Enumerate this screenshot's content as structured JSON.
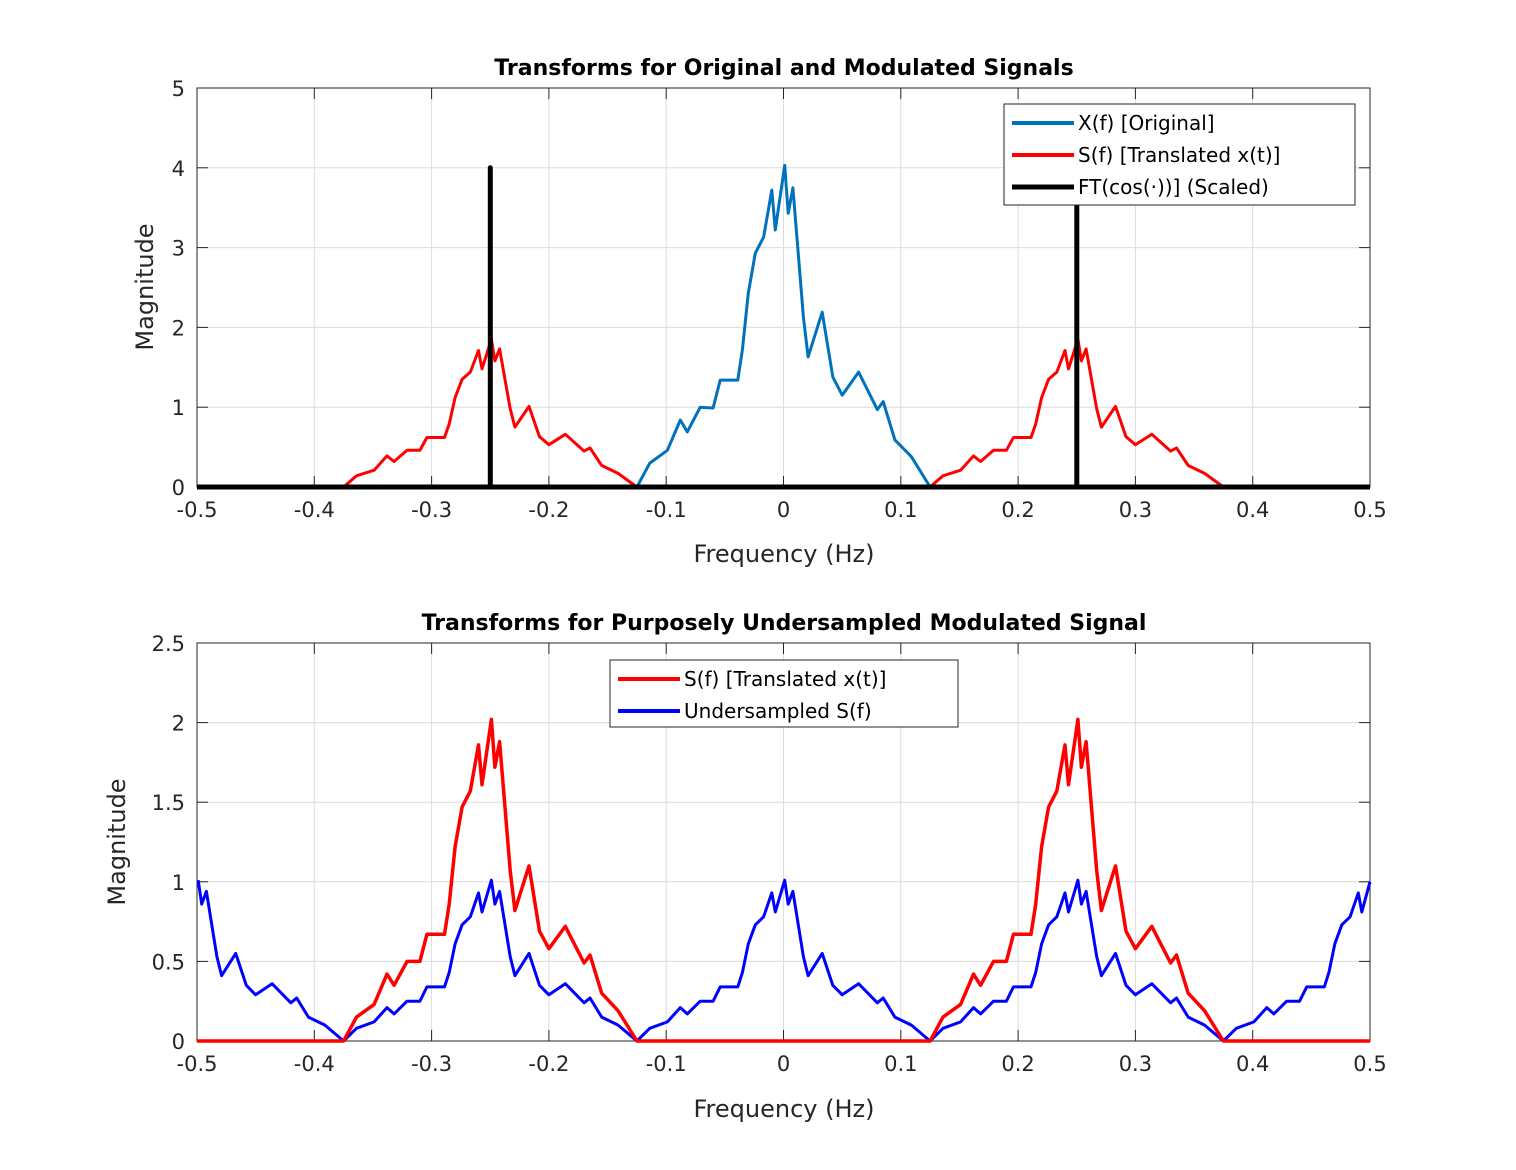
{
  "chart_data": [
    {
      "type": "line",
      "title": "Transforms for Original and Modulated Signals",
      "xlabel": "Frequency (Hz)",
      "ylabel": "Magnitude",
      "xlim": [
        -0.5,
        0.5
      ],
      "ylim": [
        0,
        5
      ],
      "xticks": [
        "-0.5",
        "-0.4",
        "-0.3",
        "-0.2",
        "-0.1",
        "0",
        "0.1",
        "0.2",
        "0.3",
        "0.4",
        "0.5"
      ],
      "yticks": [
        "0",
        "1",
        "2",
        "3",
        "4",
        "5"
      ],
      "grid": true,
      "legend_position": "top-right",
      "series": [
        {
          "name": "X(f) [Original]",
          "color": "#0072BD",
          "x": [
            -0.125,
            -0.114,
            -0.099,
            -0.088,
            -0.082,
            -0.071,
            -0.06,
            -0.054,
            -0.039,
            -0.035,
            -0.03,
            -0.024,
            -0.017,
            -0.01,
            -0.007,
            0.001,
            0.004,
            0.008,
            0.017,
            0.021,
            0.033,
            0.042,
            0.05,
            0.064,
            0.08,
            0.085,
            0.095,
            0.109,
            0.125
          ],
          "y": [
            0,
            0.3,
            0.46,
            0.84,
            0.69,
            1.0,
            0.99,
            1.34,
            1.34,
            1.72,
            2.43,
            2.93,
            3.13,
            3.72,
            3.22,
            4.03,
            3.43,
            3.75,
            2.13,
            1.63,
            2.19,
            1.38,
            1.15,
            1.44,
            0.97,
            1.07,
            0.59,
            0.38,
            0
          ]
        },
        {
          "name": "S(f) [Translated x(t)]",
          "color": "#FF0000",
          "x": [
            -0.5,
            -0.375,
            -0.364,
            -0.349,
            -0.338,
            -0.332,
            -0.321,
            -0.31,
            -0.304,
            -0.289,
            -0.285,
            -0.28,
            -0.274,
            -0.267,
            -0.26,
            -0.257,
            -0.249,
            -0.246,
            -0.242,
            -0.233,
            -0.229,
            -0.217,
            -0.208,
            -0.2,
            -0.186,
            -0.17,
            -0.165,
            -0.155,
            -0.141,
            -0.125,
            0.125,
            0.136,
            0.151,
            0.162,
            0.168,
            0.179,
            0.19,
            0.196,
            0.211,
            0.215,
            0.22,
            0.226,
            0.233,
            0.24,
            0.243,
            0.251,
            0.254,
            0.258,
            0.267,
            0.271,
            0.283,
            0.292,
            0.3,
            0.314,
            0.33,
            0.335,
            0.345,
            0.359,
            0.375,
            0.5
          ],
          "y": [
            0,
            0,
            0.14,
            0.21,
            0.39,
            0.32,
            0.46,
            0.46,
            0.62,
            0.62,
            0.79,
            1.12,
            1.35,
            1.44,
            1.71,
            1.48,
            1.85,
            1.58,
            1.73,
            0.98,
            0.75,
            1.01,
            0.63,
            0.53,
            0.66,
            0.45,
            0.49,
            0.27,
            0.17,
            0,
            0,
            0.14,
            0.21,
            0.39,
            0.32,
            0.46,
            0.46,
            0.62,
            0.62,
            0.79,
            1.12,
            1.35,
            1.44,
            1.71,
            1.48,
            1.85,
            1.58,
            1.73,
            0.98,
            0.75,
            1.01,
            0.63,
            0.53,
            0.66,
            0.45,
            0.49,
            0.27,
            0.17,
            0,
            0
          ]
        },
        {
          "name": "FT(cos(·))] (Scaled)",
          "color": "#000000",
          "x": [
            -0.5,
            -0.25,
            -0.25,
            -0.25,
            0.25,
            0.25,
            0.25,
            0.5
          ],
          "y": [
            0,
            0,
            4,
            0,
            0,
            4,
            0,
            0
          ]
        }
      ]
    },
    {
      "type": "line",
      "title": "Transforms for Purposely Undersampled Modulated Signal",
      "xlabel": "Frequency (Hz)",
      "ylabel": "Magnitude",
      "xlim": [
        -0.5,
        0.5
      ],
      "ylim": [
        0,
        2.5
      ],
      "xticks": [
        "-0.5",
        "-0.4",
        "-0.3",
        "-0.2",
        "-0.1",
        "0",
        "0.1",
        "0.2",
        "0.3",
        "0.4",
        "0.5"
      ],
      "yticks": [
        "0",
        "0.5",
        "1",
        "1.5",
        "2",
        "2.5"
      ],
      "grid": true,
      "legend_position": "top-center",
      "series": [
        {
          "name": "Undersampled S(f)",
          "color": "#0000FF",
          "x": [
            -0.499,
            -0.496,
            -0.492,
            -0.483,
            -0.479,
            -0.467,
            -0.458,
            -0.45,
            -0.436,
            -0.42,
            -0.415,
            -0.405,
            -0.391,
            -0.375,
            -0.364,
            -0.349,
            -0.338,
            -0.332,
            -0.321,
            -0.31,
            -0.304,
            -0.289,
            -0.285,
            -0.28,
            -0.274,
            -0.267,
            -0.26,
            -0.257,
            -0.249,
            -0.246,
            -0.242,
            -0.233,
            -0.229,
            -0.217,
            -0.208,
            -0.2,
            -0.186,
            -0.17,
            -0.165,
            -0.155,
            -0.141,
            -0.125,
            -0.114,
            -0.099,
            -0.088,
            -0.082,
            -0.071,
            -0.06,
            -0.054,
            -0.039,
            -0.035,
            -0.03,
            -0.024,
            -0.017,
            -0.01,
            -0.007,
            0.001,
            0.004,
            0.008,
            0.017,
            0.021,
            0.033,
            0.042,
            0.05,
            0.064,
            0.08,
            0.085,
            0.095,
            0.109,
            0.125,
            0.136,
            0.151,
            0.162,
            0.168,
            0.179,
            0.19,
            0.196,
            0.211,
            0.215,
            0.22,
            0.226,
            0.233,
            0.24,
            0.243,
            0.251,
            0.254,
            0.258,
            0.267,
            0.271,
            0.283,
            0.292,
            0.3,
            0.314,
            0.33,
            0.335,
            0.345,
            0.359,
            0.375,
            0.386,
            0.401,
            0.412,
            0.418,
            0.429,
            0.44,
            0.446,
            0.461,
            0.465,
            0.47,
            0.476,
            0.483,
            0.49,
            0.493,
            0.5
          ],
          "y": [
            1.01,
            0.86,
            0.94,
            0.53,
            0.41,
            0.55,
            0.35,
            0.29,
            0.36,
            0.24,
            0.27,
            0.15,
            0.1,
            0,
            0.08,
            0.12,
            0.21,
            0.17,
            0.25,
            0.25,
            0.34,
            0.34,
            0.43,
            0.61,
            0.73,
            0.78,
            0.93,
            0.81,
            1.01,
            0.86,
            0.94,
            0.53,
            0.41,
            0.55,
            0.35,
            0.29,
            0.36,
            0.24,
            0.27,
            0.15,
            0.1,
            0,
            0.08,
            0.12,
            0.21,
            0.17,
            0.25,
            0.25,
            0.34,
            0.34,
            0.43,
            0.61,
            0.73,
            0.78,
            0.93,
            0.81,
            1.01,
            0.86,
            0.94,
            0.53,
            0.41,
            0.55,
            0.35,
            0.29,
            0.36,
            0.24,
            0.27,
            0.15,
            0.1,
            0,
            0.08,
            0.12,
            0.21,
            0.17,
            0.25,
            0.25,
            0.34,
            0.34,
            0.43,
            0.61,
            0.73,
            0.78,
            0.93,
            0.81,
            1.01,
            0.86,
            0.94,
            0.53,
            0.41,
            0.55,
            0.35,
            0.29,
            0.36,
            0.24,
            0.27,
            0.15,
            0.1,
            0,
            0.08,
            0.12,
            0.21,
            0.17,
            0.25,
            0.25,
            0.34,
            0.34,
            0.43,
            0.61,
            0.73,
            0.78,
            0.93,
            0.81,
            1.0
          ]
        },
        {
          "name": "S(f) [Translated x(t)]",
          "color": "#FF0000",
          "x": [
            -0.5,
            -0.375,
            -0.364,
            -0.349,
            -0.338,
            -0.332,
            -0.321,
            -0.31,
            -0.304,
            -0.289,
            -0.285,
            -0.28,
            -0.274,
            -0.267,
            -0.26,
            -0.257,
            -0.249,
            -0.246,
            -0.242,
            -0.233,
            -0.229,
            -0.217,
            -0.208,
            -0.2,
            -0.186,
            -0.17,
            -0.165,
            -0.155,
            -0.141,
            -0.125,
            0.125,
            0.136,
            0.151,
            0.162,
            0.168,
            0.179,
            0.19,
            0.196,
            0.211,
            0.215,
            0.22,
            0.226,
            0.233,
            0.24,
            0.243,
            0.251,
            0.254,
            0.258,
            0.267,
            0.271,
            0.283,
            0.292,
            0.3,
            0.314,
            0.33,
            0.335,
            0.345,
            0.359,
            0.375,
            0.5
          ],
          "y": [
            0,
            0,
            0.15,
            0.23,
            0.42,
            0.35,
            0.5,
            0.5,
            0.67,
            0.67,
            0.86,
            1.22,
            1.47,
            1.57,
            1.86,
            1.61,
            2.02,
            1.72,
            1.88,
            1.07,
            0.82,
            1.1,
            0.69,
            0.58,
            0.72,
            0.49,
            0.54,
            0.3,
            0.19,
            0,
            0,
            0.15,
            0.23,
            0.42,
            0.35,
            0.5,
            0.5,
            0.67,
            0.67,
            0.86,
            1.22,
            1.47,
            1.57,
            1.86,
            1.61,
            2.02,
            1.72,
            1.88,
            1.07,
            0.82,
            1.1,
            0.69,
            0.58,
            0.72,
            0.49,
            0.54,
            0.3,
            0.19,
            0,
            0
          ]
        }
      ],
      "legend_order": [
        "S(f) [Translated x(t)]",
        "Undersampled S(f)"
      ]
    }
  ]
}
